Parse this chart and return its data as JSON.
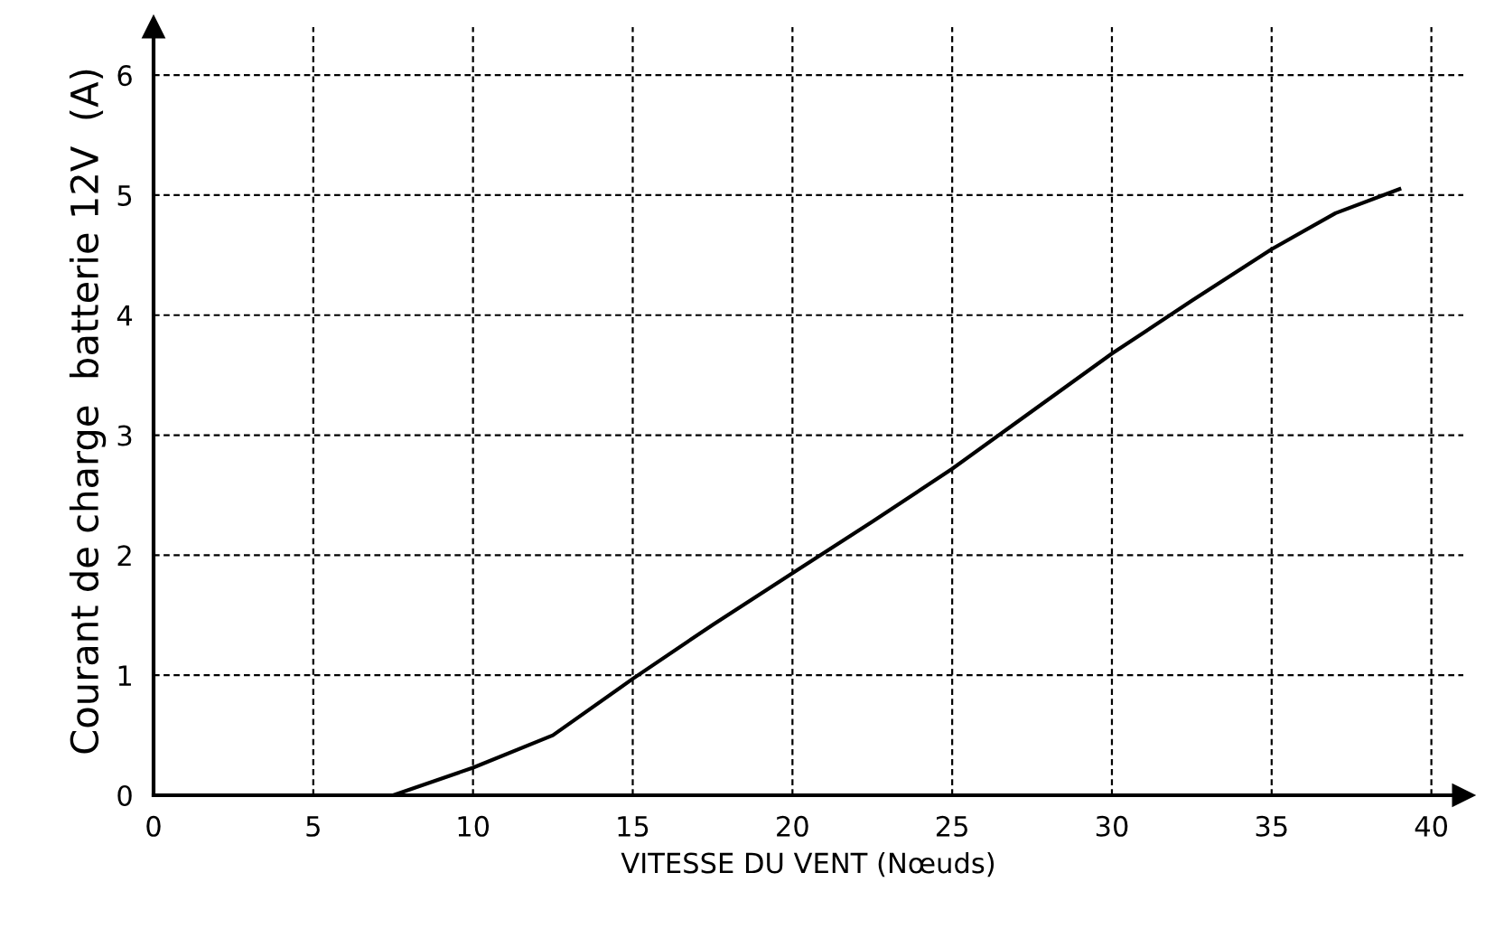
{
  "chart_data": {
    "type": "line",
    "xlabel": "VITESSE DU VENT (Nœuds)",
    "ylabel": "Courant de charge  batterie 12V  (A)",
    "series": [
      {
        "color": "#000000",
        "x": [
          7.5,
          10,
          12.5,
          15,
          17.5,
          20,
          22.5,
          25,
          27.5,
          30,
          32.5,
          35,
          37,
          39
        ],
        "values": [
          0,
          0.23,
          0.5,
          0.97,
          1.42,
          1.85,
          2.28,
          2.72,
          3.2,
          3.68,
          4.12,
          4.55,
          4.85,
          5.05
        ]
      }
    ],
    "xlim": [
      0,
      41
    ],
    "ylim": [
      0,
      6.4
    ],
    "xticks": [
      0,
      5,
      10,
      15,
      20,
      25,
      30,
      35,
      40
    ],
    "yticks": [
      0,
      1,
      2,
      3,
      4,
      5,
      6
    ],
    "grid": true,
    "line_style": "solid",
    "marker": "none",
    "legend": false
  }
}
